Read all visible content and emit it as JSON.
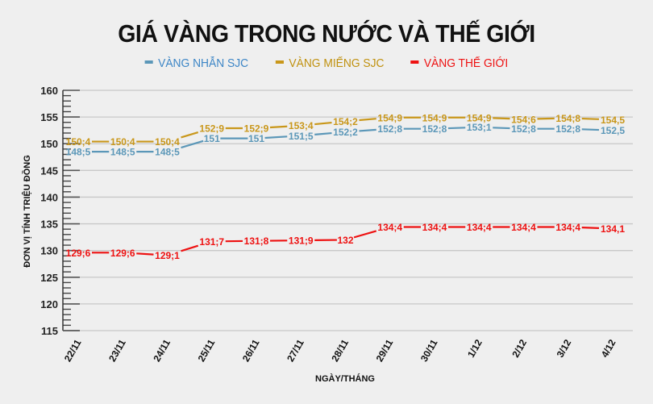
{
  "title": "GIÁ VÀNG TRONG NƯỚC VÀ THẾ GIỚI",
  "legend": [
    {
      "label": "VÀNG NHẪN SJC",
      "color": "#5b97b8",
      "text_color": "#3d86c6"
    },
    {
      "label": "VÀNG MIẾNG SJC",
      "color": "#c9971a",
      "text_color": "#c0910f"
    },
    {
      "label": "VÀNG THẾ GIỚI",
      "color": "#ee1111",
      "text_color": "#ee1111"
    }
  ],
  "chart_data": {
    "type": "line",
    "title": "GIÁ VÀNG TRONG NƯỚC VÀ THẾ GIỚI",
    "xlabel": "NGÀY/THÁNG",
    "ylabel": "ĐƠN VỊ TÍNH TRIỆU ĐỒNG",
    "ylim": [
      115,
      160
    ],
    "yticks": [
      115,
      120,
      125,
      130,
      135,
      140,
      145,
      150,
      155,
      160
    ],
    "grid": true,
    "legend_position": "top",
    "categories": [
      "22/11",
      "23/11",
      "24/11",
      "25/11",
      "26/11",
      "27/11",
      "28/11",
      "29/11",
      "30/11",
      "1/12",
      "2/12",
      "3/12",
      "4/12"
    ],
    "series": [
      {
        "name": "VÀNG NHẪN SJC",
        "color": "#5b97b8",
        "values": [
          148.5,
          148.5,
          148.5,
          151,
          151,
          151.5,
          152.2,
          152.8,
          152.8,
          153.1,
          152.8,
          152.8,
          152.5
        ],
        "labels": [
          "148;5",
          "148;5",
          "148;5",
          "151",
          "151",
          "151;5",
          "152;2",
          "152;8",
          "152;8",
          "153;1",
          "152;8",
          "152;8",
          "152,5"
        ]
      },
      {
        "name": "VÀNG MIẾNG SJC",
        "color": "#c9971a",
        "values": [
          150.4,
          150.4,
          150.4,
          152.9,
          152.9,
          153.4,
          154.2,
          154.9,
          154.9,
          154.9,
          154.6,
          154.8,
          154.5
        ],
        "labels": [
          "150;4",
          "150;4",
          "150;4",
          "152;9",
          "152;9",
          "153;4",
          "154;2",
          "154;9",
          "154;9",
          "154;9",
          "154;6",
          "154;8",
          "154,5"
        ]
      },
      {
        "name": "VÀNG THẾ GIỚI",
        "color": "#ee1111",
        "values": [
          129.6,
          129.6,
          129.1,
          131.7,
          131.8,
          131.9,
          132,
          134.4,
          134.4,
          134.4,
          134.4,
          134.4,
          134.1
        ],
        "labels": [
          "129;6",
          "129;6",
          "129;1",
          "131;7",
          "131;8",
          "131;9",
          "132",
          "134;4",
          "134;4",
          "134;4",
          "134;4",
          "134;4",
          "134,1"
        ]
      }
    ]
  }
}
